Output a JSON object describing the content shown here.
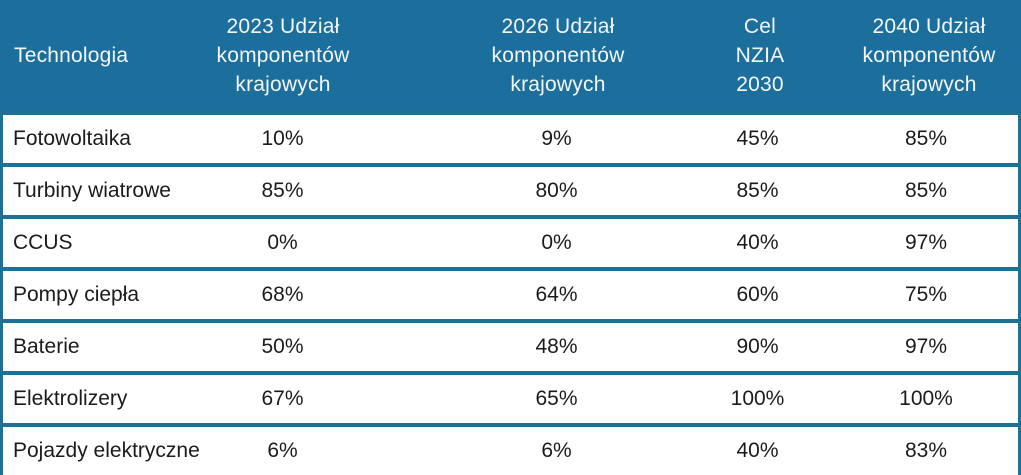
{
  "colors": {
    "header_bg": "#1c6e9d",
    "border": "#1f7096",
    "header_text": "#f2f7fa",
    "body_text": "#1b1b1b",
    "row_bg": "#ffffff"
  },
  "header_labels": [
    "Technologia",
    "2023 Udział\nkomponentów\nkrajowych",
    "2026 Udział\nkomponentów\nkrajowych",
    "Cel\nNZIA\n2030",
    "2040 Udział\nkomponentów\nkrajowych"
  ],
  "chart_data": {
    "type": "table",
    "title": "",
    "columns": [
      "Technologia",
      "2023 Udział komponentów krajowych",
      "2026 Udział komponentów krajowych",
      "Cel NZIA 2030",
      "2040 Udział komponentów krajowych"
    ],
    "rows": [
      [
        "Fotowoltaika",
        "10%",
        "9%",
        "45%",
        "85%"
      ],
      [
        "Turbiny wiatrowe",
        "85%",
        "80%",
        "85%",
        "85%"
      ],
      [
        "CCUS",
        "0%",
        "0%",
        "40%",
        "97%"
      ],
      [
        "Pompy ciepła",
        "68%",
        "64%",
        "60%",
        "75%"
      ],
      [
        "Baterie",
        "50%",
        "48%",
        "90%",
        "97%"
      ],
      [
        "Elektrolizery",
        "67%",
        "65%",
        "100%",
        "100%"
      ],
      [
        "Pojazdy elektryczne",
        "6%",
        "6%",
        "40%",
        "83%"
      ]
    ]
  }
}
